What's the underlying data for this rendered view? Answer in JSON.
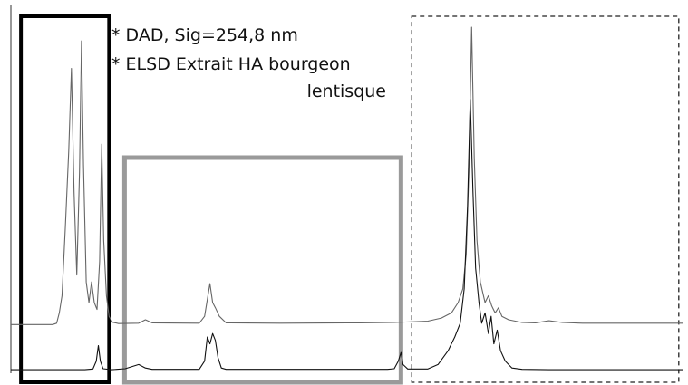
{
  "chart_data": {
    "type": "line",
    "title": "",
    "xlabel": "",
    "ylabel": "",
    "xlim": [
      0,
      100
    ],
    "ylim": [
      0,
      100
    ],
    "grid": false,
    "legend_position": "top-center",
    "legend": [
      "* DAD, Sig=254,8 nm",
      "* ELSD Extrait HA bourgeon",
      "lentisque"
    ],
    "series": [
      {
        "color": "#666666",
        "points": [
          [
            0,
            13.6
          ],
          [
            6.2,
            13.6
          ],
          [
            6.8,
            14
          ],
          [
            7.2,
            17
          ],
          [
            7.6,
            22
          ],
          [
            8.1,
            42
          ],
          [
            8.6,
            64
          ],
          [
            9.0,
            88
          ],
          [
            9.4,
            52
          ],
          [
            9.8,
            28
          ],
          [
            10.2,
            58
          ],
          [
            10.5,
            96
          ],
          [
            10.8,
            60
          ],
          [
            11.2,
            26
          ],
          [
            11.6,
            20
          ],
          [
            12.0,
            26
          ],
          [
            12.4,
            20
          ],
          [
            12.8,
            18
          ],
          [
            13.2,
            32
          ],
          [
            13.5,
            66
          ],
          [
            13.8,
            38
          ],
          [
            14.2,
            22
          ],
          [
            14.6,
            16
          ],
          [
            15.1,
            14.3
          ],
          [
            16,
            13.9
          ],
          [
            19,
            14
          ],
          [
            20,
            15
          ],
          [
            21,
            14.1
          ],
          [
            28,
            14
          ],
          [
            28.8,
            16
          ],
          [
            29.3,
            22
          ],
          [
            29.6,
            25.5
          ],
          [
            30.0,
            20
          ],
          [
            30.4,
            18.5
          ],
          [
            31.0,
            16
          ],
          [
            32,
            14.1
          ],
          [
            40,
            14
          ],
          [
            52,
            14.1
          ],
          [
            57,
            14.2
          ],
          [
            62,
            14.6
          ],
          [
            64,
            15.5
          ],
          [
            65.5,
            17
          ],
          [
            66.5,
            20
          ],
          [
            67.2,
            24
          ],
          [
            67.7,
            34
          ],
          [
            68.1,
            58
          ],
          [
            68.5,
            100
          ],
          [
            68.9,
            62
          ],
          [
            69.3,
            38
          ],
          [
            69.8,
            26
          ],
          [
            70.5,
            20
          ],
          [
            71.0,
            22
          ],
          [
            71.5,
            19
          ],
          [
            72.0,
            17
          ],
          [
            72.5,
            18.5
          ],
          [
            73.0,
            16
          ],
          [
            74,
            15
          ],
          [
            76,
            14.2
          ],
          [
            78,
            14.1
          ],
          [
            80,
            14.7
          ],
          [
            82,
            14.2
          ],
          [
            85,
            14
          ],
          [
            100,
            14
          ]
        ]
      },
      {
        "color": "#111111",
        "points": [
          [
            0,
            0.5
          ],
          [
            11,
            0.5
          ],
          [
            12.2,
            0.7
          ],
          [
            12.7,
            3
          ],
          [
            13.0,
            7.5
          ],
          [
            13.3,
            3
          ],
          [
            13.7,
            0.8
          ],
          [
            15,
            0.5
          ],
          [
            17,
            0.8
          ],
          [
            19,
            2
          ],
          [
            20,
            1
          ],
          [
            21,
            0.6
          ],
          [
            28,
            0.6
          ],
          [
            28.8,
            3
          ],
          [
            29.2,
            10
          ],
          [
            29.6,
            8
          ],
          [
            30.0,
            11
          ],
          [
            30.4,
            9
          ],
          [
            30.8,
            4
          ],
          [
            31.3,
            1
          ],
          [
            32,
            0.6
          ],
          [
            40,
            0.6
          ],
          [
            50,
            0.6
          ],
          [
            56,
            0.6
          ],
          [
            57,
            0.8
          ],
          [
            57.6,
            3
          ],
          [
            58.0,
            5.5
          ],
          [
            58.3,
            2
          ],
          [
            59,
            0.7
          ],
          [
            62,
            0.7
          ],
          [
            63.5,
            2
          ],
          [
            65,
            6
          ],
          [
            66,
            10
          ],
          [
            66.8,
            14
          ],
          [
            67.4,
            24
          ],
          [
            67.9,
            48
          ],
          [
            68.3,
            79
          ],
          [
            68.7,
            52
          ],
          [
            69.1,
            30
          ],
          [
            69.6,
            20
          ],
          [
            70.0,
            14
          ],
          [
            70.5,
            17
          ],
          [
            71.0,
            11
          ],
          [
            71.4,
            16
          ],
          [
            71.8,
            8
          ],
          [
            72.3,
            12
          ],
          [
            72.8,
            6
          ],
          [
            73.5,
            3
          ],
          [
            74.5,
            1
          ],
          [
            76,
            0.6
          ],
          [
            80,
            0.5
          ],
          [
            100,
            0.5
          ]
        ]
      }
    ],
    "regions": [
      {
        "x0": 1.5,
        "x1": 14.6,
        "color": "#000000",
        "style": "solid"
      },
      {
        "x0": 16.9,
        "x1": 58.0,
        "color": "#9a9a9a",
        "style": "solid"
      },
      {
        "x0": 59.6,
        "x1": 99.3,
        "color": "#222222",
        "style": "dashed"
      }
    ]
  }
}
